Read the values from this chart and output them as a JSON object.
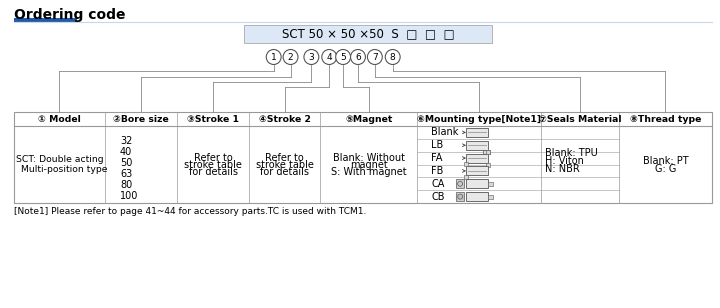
{
  "title": "Ordering code",
  "title_underline_color": "#1e5aab",
  "background_color": "#ffffff",
  "code_box_text": "SCT 50 × 50 ×50  S  □  □  □",
  "code_box_bg": "#dce8f5",
  "circle_labels": [
    "1",
    "2",
    "3",
    "4",
    "5",
    "6",
    "7",
    "8"
  ],
  "table_headers": [
    "① Model",
    "②Bore size",
    "③Stroke 1",
    "④Stroke 2",
    "⑤Magnet",
    "⑥Mounting type[Note1]",
    "⑦Seals Material",
    "⑧Thread type"
  ],
  "col6_rows": [
    "Blank",
    "LB",
    "FA",
    "FB",
    "CA",
    "CB"
  ],
  "footnote": "[Note1] Please refer to page 41~44 for accessory parts.TC is used with TCM1.",
  "text_color": "#000000",
  "grid_color": "#999999",
  "font_size": 7.0,
  "header_font_size": 7.0
}
